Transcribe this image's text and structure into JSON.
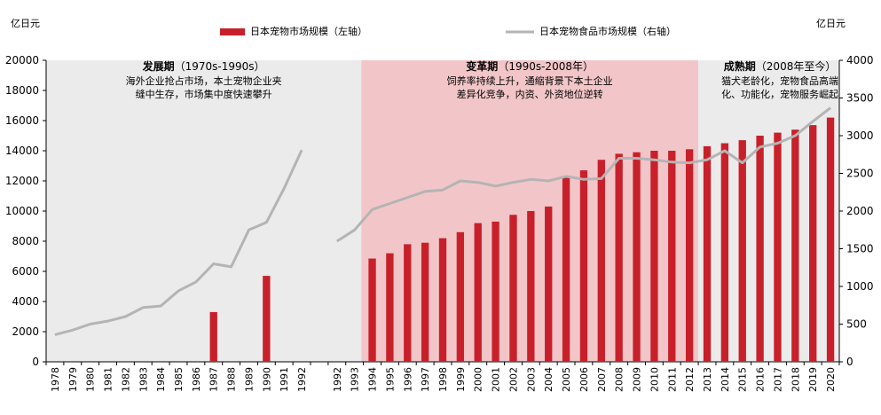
{
  "chart_data": {
    "type": "bar+line",
    "left_unit": "亿日元",
    "right_unit": "亿日元",
    "legend": {
      "bar_label": "日本宠物市场规模（左轴）",
      "line_label": "日本宠物食品市场规模（右轴）",
      "placement": "top-center"
    },
    "colors": {
      "bar": "#c8202a",
      "line": "#b4b4b4",
      "phase1_bg": "#ebebeb",
      "phase2_bg": "#f2c6c8",
      "phase3_bg": "#ebebeb"
    },
    "y_left": {
      "min": 0,
      "max": 20000,
      "ticks": [
        "0",
        "2000",
        "4000",
        "6000",
        "8000",
        "10000",
        "12000",
        "14000",
        "16000",
        "18000",
        "20000"
      ]
    },
    "y_right": {
      "min": 0,
      "max": 4000,
      "ticks": [
        "0",
        "500",
        "1000",
        "1500",
        "2000",
        "2500",
        "3000",
        "3500",
        "4000"
      ]
    },
    "categories": [
      "1978",
      "1979",
      "1980",
      "1981",
      "1982",
      "1983",
      "1984",
      "1985",
      "1986",
      "1987",
      "1988",
      "1989",
      "1990",
      "1991",
      "1992",
      "",
      "1992",
      "1993",
      "1994",
      "1995",
      "1996",
      "1997",
      "1998",
      "1999",
      "2000",
      "2001",
      "2002",
      "2003",
      "2004",
      "2005",
      "2006",
      "2007",
      "2008",
      "2009",
      "2010",
      "2011",
      "2012",
      "2013",
      "2014",
      "2015",
      "2016",
      "2017",
      "2018",
      "2019",
      "2020"
    ],
    "bars": [
      null,
      null,
      null,
      null,
      null,
      null,
      null,
      null,
      null,
      3300,
      null,
      null,
      5700,
      null,
      null,
      null,
      null,
      null,
      6850,
      7200,
      7800,
      7900,
      8200,
      8600,
      9200,
      9300,
      9750,
      10000,
      10300,
      12300,
      12700,
      13400,
      13800,
      13900,
      14000,
      14000,
      14100,
      14300,
      14500,
      14700,
      15000,
      15200,
      15400,
      15700,
      16200
    ],
    "line": [
      360,
      420,
      500,
      540,
      600,
      720,
      740,
      940,
      1060,
      1300,
      1260,
      1750,
      1850,
      2300,
      2810,
      null,
      1600,
      1750,
      2020,
      2100,
      2180,
      2260,
      2280,
      2400,
      2380,
      2330,
      2380,
      2420,
      2400,
      2460,
      2420,
      2430,
      2700,
      2700,
      2680,
      2650,
      2640,
      2680,
      2800,
      2640,
      2850,
      2900,
      3000,
      3190,
      3370
    ],
    "phases": [
      {
        "title": "发展期",
        "period": "（1970s-1990s）",
        "desc1": "海外企业抢占市场，本土宠物企业夹",
        "desc2": "缝中生存，市场集中度快速攀升"
      },
      {
        "title": "变革期",
        "period": "（1990s-2008年）",
        "desc1": "饲养率持续上升，通缩背景下本土企业",
        "desc2": "差异化竞争，内资、外资地位逆转"
      },
      {
        "title": "成熟期",
        "period": "（2008年至今）",
        "desc1": "猫犬老龄化，宠物食品高端",
        "desc2": "化、功能化，宠物服务崛起"
      }
    ]
  }
}
